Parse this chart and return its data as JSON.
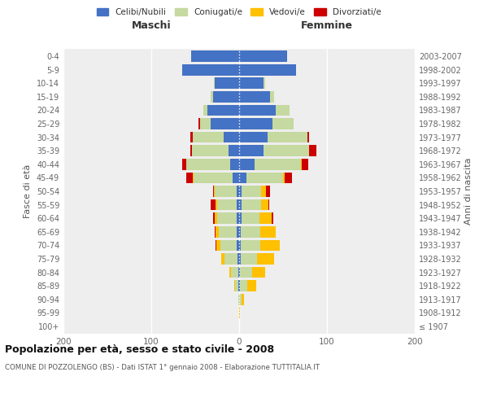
{
  "age_groups": [
    "100+",
    "95-99",
    "90-94",
    "85-89",
    "80-84",
    "75-79",
    "70-74",
    "65-69",
    "60-64",
    "55-59",
    "50-54",
    "45-49",
    "40-44",
    "35-39",
    "30-34",
    "25-29",
    "20-24",
    "15-19",
    "10-14",
    "5-9",
    "0-4"
  ],
  "birth_years": [
    "≤ 1907",
    "1908-1912",
    "1913-1917",
    "1918-1922",
    "1923-1927",
    "1928-1932",
    "1933-1937",
    "1938-1942",
    "1943-1947",
    "1948-1952",
    "1953-1957",
    "1958-1962",
    "1963-1967",
    "1968-1972",
    "1973-1977",
    "1978-1982",
    "1983-1987",
    "1988-1992",
    "1993-1997",
    "1998-2002",
    "2003-2007"
  ],
  "colors": {
    "celibi": "#4472c4",
    "coniugati": "#c5d9a0",
    "vedovi": "#ffc000",
    "divorziati": "#cc0000"
  },
  "maschi": {
    "celibi": [
      0,
      0,
      0,
      1,
      1,
      2,
      3,
      3,
      3,
      3,
      3,
      7,
      10,
      12,
      18,
      32,
      36,
      30,
      28,
      65,
      55
    ],
    "coniugati": [
      0,
      0,
      1,
      4,
      8,
      15,
      18,
      20,
      22,
      22,
      25,
      45,
      50,
      42,
      35,
      12,
      5,
      2,
      1,
      0,
      0
    ],
    "vedovi": [
      0,
      0,
      0,
      1,
      2,
      3,
      5,
      4,
      3,
      2,
      1,
      1,
      0,
      0,
      0,
      0,
      0,
      0,
      0,
      0,
      0
    ],
    "divorziati": [
      0,
      0,
      0,
      0,
      0,
      0,
      1,
      1,
      2,
      5,
      1,
      7,
      5,
      2,
      3,
      2,
      0,
      0,
      0,
      0,
      0
    ]
  },
  "femmine": {
    "celibi": [
      0,
      0,
      0,
      1,
      1,
      2,
      2,
      2,
      3,
      3,
      3,
      8,
      18,
      28,
      32,
      38,
      42,
      35,
      28,
      65,
      55
    ],
    "coniugati": [
      0,
      0,
      3,
      8,
      14,
      18,
      22,
      22,
      20,
      22,
      22,
      42,
      52,
      52,
      46,
      24,
      15,
      5,
      2,
      0,
      0
    ],
    "vedovi": [
      0,
      1,
      3,
      10,
      15,
      20,
      22,
      18,
      14,
      8,
      6,
      2,
      1,
      0,
      0,
      0,
      0,
      0,
      0,
      0,
      0
    ],
    "divorziati": [
      0,
      0,
      0,
      0,
      0,
      0,
      0,
      0,
      2,
      1,
      4,
      8,
      8,
      8,
      2,
      0,
      0,
      0,
      0,
      0,
      0
    ]
  },
  "title": "Popolazione per età, sesso e stato civile - 2008",
  "subtitle": "COMUNE DI POZZOLENGO (BS) - Dati ISTAT 1° gennaio 2008 - Elaborazione TUTTITALIA.IT",
  "label_maschi": "Maschi",
  "label_femmine": "Femmine",
  "ylabel_left": "Fasce di età",
  "ylabel_right": "Anni di nascita",
  "xlim": 200,
  "legend_labels": [
    "Celibi/Nubili",
    "Coniugati/e",
    "Vedovi/e",
    "Divorziati/e"
  ],
  "bg_color": "#eeeeee"
}
